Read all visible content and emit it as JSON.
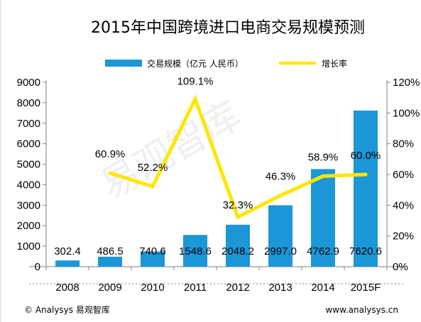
{
  "chart_data": {
    "type": "bar",
    "title": "2015年中国跨境进口电商交易规模预测",
    "categories": [
      "2008",
      "2009",
      "2010",
      "2011",
      "2012",
      "2013",
      "2014",
      "2015F"
    ],
    "series": [
      {
        "name": "交易规模（亿元 人民币）",
        "type": "bar",
        "axis": "left",
        "color": "#1b96d6",
        "values": [
          302.4,
          486.5,
          740.6,
          1548.6,
          2048.2,
          2997.0,
          4762.9,
          7620.6
        ],
        "labels": [
          "302.4",
          "486.5",
          "740.6",
          "1548.6",
          "2048.2",
          "2997.0",
          "4762.9",
          "7620.6"
        ]
      },
      {
        "name": "增长率",
        "type": "line",
        "axis": "right",
        "color": "#ffe600",
        "values": [
          null,
          60.9,
          52.2,
          109.1,
          32.3,
          46.3,
          58.9,
          60.0
        ],
        "labels": [
          "",
          "60.9%",
          "52.2%",
          "109.1%",
          "32.3%",
          "46.3%",
          "58.9%",
          "60.0%"
        ]
      }
    ],
    "ylim": [
      0,
      9000
    ],
    "yticks": [
      "0",
      "1000",
      "2000",
      "3000",
      "4000",
      "5000",
      "6000",
      "7000",
      "8000",
      "9000"
    ],
    "y2lim": [
      0,
      120
    ],
    "y2ticks": [
      "0%",
      "20%",
      "40%",
      "60%",
      "80%",
      "100%",
      "120%"
    ],
    "legend_position": "top",
    "grid": false
  },
  "watermark": "易观智库",
  "footer": {
    "left": "© Analysys 易观智库",
    "right": "www.analysys.cn"
  }
}
